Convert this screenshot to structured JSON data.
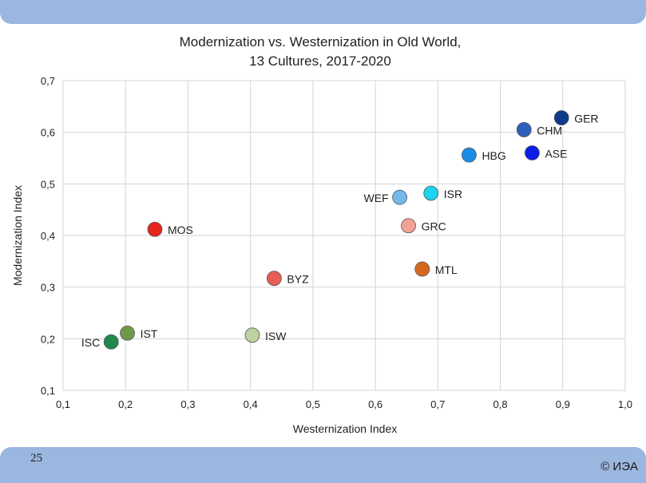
{
  "slide_number": "25",
  "copyright": "© ИЭА",
  "chart_data": {
    "type": "scatter",
    "title_lines": [
      "Modernization vs. Westernization in Old World,",
      "13 Cultures, 2017-2020"
    ],
    "xlabel": "Westernization Index",
    "ylabel": "Modernization Index",
    "xlim": [
      0.1,
      1.0
    ],
    "ylim": [
      0.1,
      0.7
    ],
    "xticks": [
      0.1,
      0.2,
      0.3,
      0.4,
      0.5,
      0.6,
      0.7,
      0.8,
      0.9,
      1.0
    ],
    "yticks": [
      0.1,
      0.2,
      0.3,
      0.4,
      0.5,
      0.6,
      0.7
    ],
    "xtick_labels": [
      "0,1",
      "0,2",
      "0,3",
      "0,4",
      "0,5",
      "0,6",
      "0,7",
      "0,8",
      "0,9",
      "1,0"
    ],
    "ytick_labels": [
      "0,1",
      "0,2",
      "0,3",
      "0,4",
      "0,5",
      "0,6",
      "0,7"
    ],
    "grid": true,
    "points": [
      {
        "label": "GER",
        "x": 0.898,
        "y": 0.628,
        "color": "#0e3a8c",
        "label_side": "right"
      },
      {
        "label": "CHM",
        "x": 0.838,
        "y": 0.605,
        "color": "#2f5fbd",
        "label_side": "right"
      },
      {
        "label": "ASE",
        "x": 0.851,
        "y": 0.56,
        "color": "#0a1ee6",
        "label_side": "right"
      },
      {
        "label": "HBG",
        "x": 0.75,
        "y": 0.556,
        "color": "#1b8be6",
        "label_side": "right"
      },
      {
        "label": "ISR",
        "x": 0.689,
        "y": 0.482,
        "color": "#1ed3f0",
        "label_side": "right"
      },
      {
        "label": "WEF",
        "x": 0.639,
        "y": 0.474,
        "color": "#74b8ec",
        "label_side": "left"
      },
      {
        "label": "GRC",
        "x": 0.653,
        "y": 0.419,
        "color": "#f2a294",
        "label_side": "right"
      },
      {
        "label": "MTL",
        "x": 0.675,
        "y": 0.335,
        "color": "#d4691e",
        "label_side": "right"
      },
      {
        "label": "MOS",
        "x": 0.247,
        "y": 0.412,
        "color": "#e5261d",
        "label_side": "right"
      },
      {
        "label": "BYZ",
        "x": 0.438,
        "y": 0.317,
        "color": "#e85e55",
        "label_side": "right"
      },
      {
        "label": "ISW",
        "x": 0.403,
        "y": 0.207,
        "color": "#bcd2a0",
        "label_side": "right"
      },
      {
        "label": "IST",
        "x": 0.203,
        "y": 0.211,
        "color": "#6e9a48",
        "label_side": "right"
      },
      {
        "label": "ISC",
        "x": 0.177,
        "y": 0.194,
        "color": "#1f8a4c",
        "label_side": "left"
      }
    ]
  }
}
